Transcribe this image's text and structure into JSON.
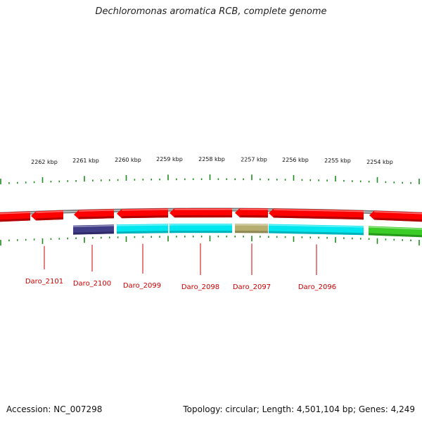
{
  "title": "Dechloromonas aromatica RCB, complete genome",
  "colors": {
    "forward_gene": "#ff0000",
    "reverse_gene_cyan": "#00e6ef",
    "reverse_gene_navy": "#403c86",
    "reverse_gene_olive": "#b5ad6e",
    "reverse_gene_green": "#3ccc28",
    "backbone": "#8c8c8c",
    "ticks": "#1e8c1e",
    "gene_label": "#cc0000"
  },
  "scale": {
    "unit": "kbp",
    "labels": [
      "2262 kbp",
      "2261 kbp",
      "2260 kbp",
      "2259 kbp",
      "2258 kbp",
      "2257 kbp",
      "2256 kbp",
      "2255 kbp",
      "2254 kbp"
    ]
  },
  "genes": [
    {
      "label": "Daro_2101"
    },
    {
      "label": "Daro_2100"
    },
    {
      "label": "Daro_2099"
    },
    {
      "label": "Daro_2098"
    },
    {
      "label": "Daro_2097"
    },
    {
      "label": "Daro_2096"
    }
  ],
  "footer": {
    "accession": "Accession: NC_007298",
    "stats": "Topology: circular; Length: 4,501,104 bp; Genes: 4,249"
  }
}
